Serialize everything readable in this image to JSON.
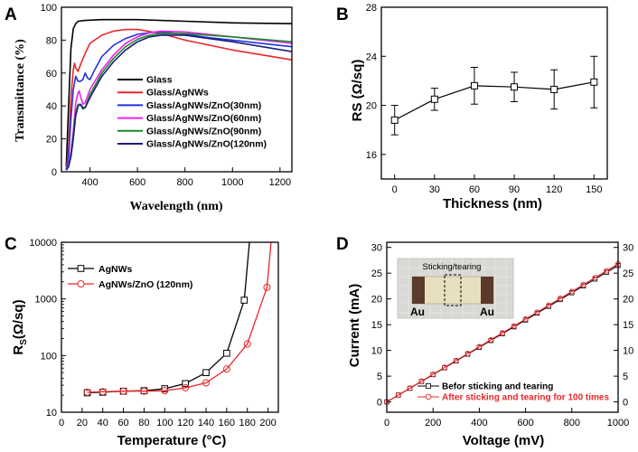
{
  "panels": {
    "A": {
      "letter": "A",
      "chart_data": {
        "type": "line",
        "xlabel": "Wavelength (nm)",
        "ylabel": "Transmittance (%)",
        "xlim": [
          280,
          1250
        ],
        "ylim": [
          0,
          100
        ],
        "xticks": [
          400,
          600,
          800,
          1000,
          1200
        ],
        "yticks": [
          0,
          20,
          40,
          60,
          80,
          100
        ],
        "series": [
          {
            "name": "Glass",
            "color": "#000000",
            "x": [
              300,
              310,
              320,
              330,
              340,
              350,
              380,
              450,
              600,
              800,
              1000,
              1250
            ],
            "y": [
              3,
              40,
              75,
              87,
              90,
              91.5,
              92,
              92.5,
              92.5,
              91.5,
              90.5,
              90
            ]
          },
          {
            "name": "Glass/AgNWs",
            "color": "#e8282b",
            "x": [
              300,
              310,
              320,
              330,
              335,
              340,
              350,
              360,
              380,
              400,
              450,
              500,
              550,
              600,
              700,
              800,
              1000,
              1250
            ],
            "y": [
              1,
              15,
              45,
              62,
              66,
              63,
              61,
              65,
              72,
              78,
              83,
              85.5,
              86.5,
              86.5,
              84,
              80,
              74,
              68
            ]
          },
          {
            "name": "Glass/AgNWs/ZnO(30nm)",
            "color": "#2233dd",
            "x": [
              300,
              310,
              320,
              330,
              340,
              350,
              360,
              370,
              380,
              390,
              400,
              420,
              450,
              500,
              550,
              600,
              650,
              700,
              800,
              900,
              1000,
              1250
            ],
            "y": [
              1,
              10,
              32,
              50,
              58,
              55,
              55,
              56,
              60,
              57,
              56,
              62,
              70,
              77,
              81,
              83.5,
              84.5,
              85,
              83.5,
              81.5,
              80,
              76
            ]
          },
          {
            "name": "Glass/AgNWs/ZnO(60nm)",
            "color": "#ee22ee",
            "x": [
              300,
              310,
              320,
              330,
              340,
              350,
              355,
              360,
              370,
              380,
              400,
              450,
              500,
              550,
              600,
              650,
              700,
              800,
              1000,
              1250
            ],
            "y": [
              1,
              5,
              12,
              25,
              42,
              48,
              49,
              46,
              41,
              42,
              50,
              62,
              71,
              78,
              82,
              84.5,
              85.5,
              85,
              82,
              78
            ]
          },
          {
            "name": "Glass/AgNWs/ZnO(90nm)",
            "color": "#1a8a2a",
            "x": [
              300,
              310,
              320,
              330,
              340,
              350,
              360,
              370,
              380,
              400,
              450,
              500,
              550,
              600,
              650,
              700,
              800,
              1000,
              1250
            ],
            "y": [
              1,
              4,
              10,
              22,
              36,
              41,
              41,
              38,
              39,
              47,
              60,
              69,
              76,
              80.5,
              83,
              84,
              84,
              82,
              79
            ]
          },
          {
            "name": "Glass/AgNWs/ZnO(120nm)",
            "color": "#1c1c7a",
            "x": [
              300,
              310,
              320,
              330,
              340,
              350,
              360,
              370,
              380,
              400,
              450,
              500,
              550,
              600,
              650,
              700,
              800,
              1000,
              1250
            ],
            "y": [
              1,
              3,
              9,
              20,
              34,
              40,
              41,
              39,
              39,
              45,
              58,
              67,
              74,
              79,
              82,
              83,
              83,
              79,
              73
            ]
          }
        ]
      }
    },
    "B": {
      "letter": "B",
      "chart_data": {
        "type": "line",
        "xlabel": "Thickness (nm)",
        "ylabel": "RS (Ω/sq)",
        "xlim": [
          -10,
          160
        ],
        "ylim": [
          14,
          28
        ],
        "xticks": [
          0,
          30,
          60,
          90,
          120,
          150
        ],
        "yticks": [
          16,
          20,
          24,
          28
        ],
        "series": [
          {
            "name": "RS",
            "color": "#000000",
            "x": [
              0,
              30,
              60,
              90,
              120,
              150
            ],
            "y": [
              18.8,
              20.5,
              21.6,
              21.5,
              21.3,
              21.9
            ],
            "err": [
              1.2,
              0.9,
              1.5,
              1.2,
              1.6,
              2.1
            ]
          }
        ]
      }
    },
    "C": {
      "letter": "C",
      "chart_data": {
        "type": "line",
        "xlabel": "Temperature (°C)",
        "ylabel_main": "R",
        "ylabel_sub": "S",
        "ylabel_unit": "(Ω/sq)",
        "yscale": "log",
        "xlim": [
          0,
          210
        ],
        "ylim": [
          10,
          10000
        ],
        "xticks": [
          0,
          20,
          40,
          60,
          80,
          100,
          120,
          140,
          160,
          180,
          200
        ],
        "yticks": [
          10,
          100,
          1000,
          10000
        ],
        "series": [
          {
            "name": "AgNWs",
            "color": "#000000",
            "x": [
              25,
              40,
              60,
              80,
              100,
              120,
              140,
              160,
              177,
              182
            ],
            "y": [
              22,
              22.5,
              23.5,
              24,
              26,
              32,
              50,
              110,
              950,
              10000
            ]
          },
          {
            "name": "AgNWs/ZnO (120nm)",
            "color": "#e8282b",
            "x": [
              25,
              40,
              60,
              80,
              100,
              120,
              140,
              160,
              180,
              199,
              203
            ],
            "y": [
              22.5,
              23,
              23.5,
              23.5,
              24,
              27,
              33,
              58,
              160,
              1600,
              10000
            ]
          }
        ]
      }
    },
    "D": {
      "letter": "D",
      "chart_data": {
        "type": "line",
        "xlabel": "Voltage (mV)",
        "ylabel": "Current (mA)",
        "xlim": [
          0,
          1000
        ],
        "ylim": [
          -2,
          31
        ],
        "xticks": [
          0,
          200,
          400,
          600,
          800,
          1000
        ],
        "yticks": [
          0,
          5,
          10,
          15,
          20,
          25,
          30
        ],
        "series": [
          {
            "name": "Befor sticking and tearing",
            "color": "#000000",
            "x": [
              0,
              1000
            ],
            "y": [
              0,
              26.5
            ]
          },
          {
            "name": "After sticking and tearing for 100 times",
            "color": "#e8282b",
            "x": [
              0,
              1000
            ],
            "y": [
              0,
              26.8
            ]
          }
        ],
        "inset": {
          "top_label": "Sticking/tearing",
          "left_label": "Au",
          "right_label": "Au"
        }
      }
    }
  }
}
